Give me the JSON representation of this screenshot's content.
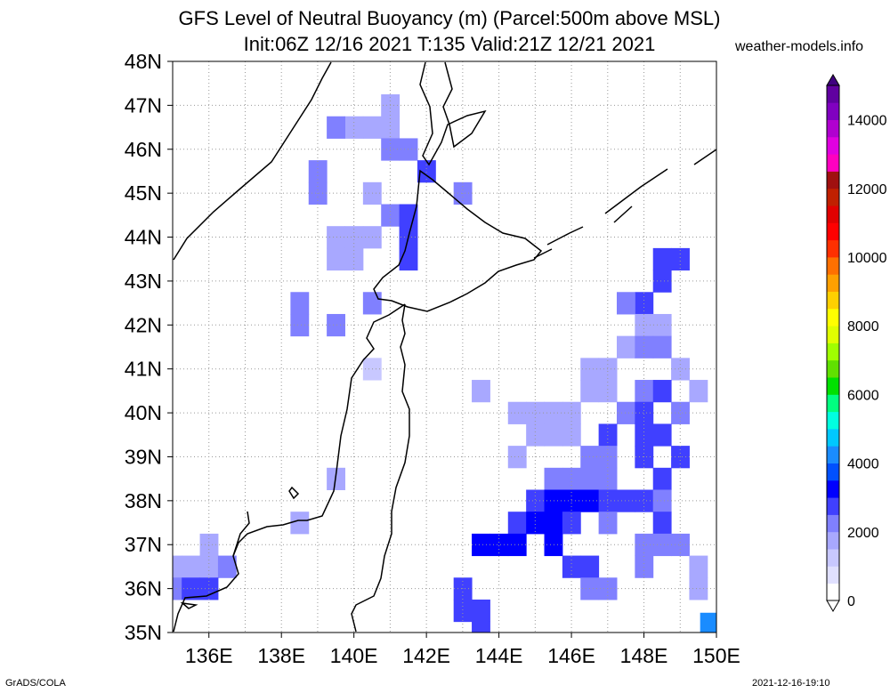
{
  "title_line1": "GFS Level of Neutral Buoyancy (m) (Parcel:500m above MSL)",
  "title_line2": "Init:06Z 12/16 2021 T:135 Valid:21Z 12/21 2021",
  "site": "weather-models.info",
  "footer_left": "GrADS/COLA",
  "footer_right": "2021-12-16-19:10",
  "lat_labels": [
    "48N",
    "47N",
    "46N",
    "45N",
    "44N",
    "43N",
    "42N",
    "41N",
    "40N",
    "39N",
    "38N",
    "37N",
    "36N",
    "35N"
  ],
  "lon_labels": [
    "136E",
    "138E",
    "140E",
    "142E",
    "144E",
    "146E",
    "148E",
    "150E"
  ],
  "colorbar": {
    "labels": [
      "0",
      "2000",
      "4000",
      "6000",
      "8000",
      "10000",
      "12000",
      "14000"
    ],
    "colors": [
      "#ffffff",
      "#e0e0ff",
      "#c8c8ff",
      "#a8a8ff",
      "#8080ff",
      "#4040ff",
      "#0000ff",
      "#0050ff",
      "#1a8cff",
      "#00c8ff",
      "#00ffe0",
      "#00ff80",
      "#00e000",
      "#60e000",
      "#a0ff00",
      "#e0ff00",
      "#ffff00",
      "#ffd000",
      "#ffa000",
      "#ff7000",
      "#ff3000",
      "#ff0000",
      "#e00000",
      "#c02000",
      "#a01010",
      "#ff00c0",
      "#e000e0",
      "#b000d0",
      "#8000c0",
      "#6000a0"
    ]
  },
  "chart_data": {
    "type": "heatmap",
    "variable": "Level of Neutral Buoyancy (m)",
    "lon_range": [
      135,
      150
    ],
    "lat_range": [
      35,
      48
    ],
    "grid_step_deg": 0.5,
    "value_range": [
      0,
      15000
    ],
    "cells": [
      [
        141,
        47,
        1700
      ],
      [
        140.5,
        46.5,
        1800
      ],
      [
        141,
        46.5,
        1900
      ],
      [
        140,
        46.5,
        1900
      ],
      [
        139.5,
        46.5,
        2100
      ],
      [
        141,
        46,
        2200
      ],
      [
        141.5,
        46,
        2000
      ],
      [
        142,
        45.5,
        2500
      ],
      [
        139,
        45.5,
        2300
      ],
      [
        139,
        45,
        2400
      ],
      [
        140.5,
        45,
        1900
      ],
      [
        143,
        45,
        2000
      ],
      [
        141,
        44.5,
        2400
      ],
      [
        141.5,
        44.5,
        2800
      ],
      [
        141.5,
        44,
        2600
      ],
      [
        140.5,
        44,
        1800
      ],
      [
        140,
        44,
        1800
      ],
      [
        139.5,
        44,
        1800
      ],
      [
        140,
        43.5,
        1800
      ],
      [
        139.5,
        43.5,
        1800
      ],
      [
        141.5,
        43.5,
        2500
      ],
      [
        138.5,
        42.5,
        2000
      ],
      [
        138.5,
        42,
        2100
      ],
      [
        140.5,
        42.5,
        2400
      ],
      [
        139.5,
        42,
        2300
      ],
      [
        148.5,
        43.5,
        2800
      ],
      [
        149,
        43.5,
        2900
      ],
      [
        148.5,
        43,
        2700
      ],
      [
        148,
        42.5,
        2500
      ],
      [
        147.5,
        42.5,
        2000
      ],
      [
        148,
        42,
        1800
      ],
      [
        148.5,
        42,
        1900
      ],
      [
        147.5,
        41.5,
        1700
      ],
      [
        148,
        41.5,
        2000
      ],
      [
        148.5,
        41.5,
        2200
      ],
      [
        147,
        41,
        1700
      ],
      [
        146.5,
        41,
        1600
      ],
      [
        149,
        41,
        1700
      ],
      [
        149.5,
        40.5,
        1800
      ],
      [
        146.5,
        40.5,
        1600
      ],
      [
        147,
        40.5,
        1700
      ],
      [
        148,
        40.5,
        2300
      ],
      [
        148.5,
        40.5,
        2600
      ],
      [
        147.5,
        40,
        2100
      ],
      [
        148,
        40,
        2500
      ],
      [
        149,
        40,
        2400
      ],
      [
        146,
        40,
        1600
      ],
      [
        144.5,
        40,
        1600
      ],
      [
        145,
        40,
        1600
      ],
      [
        145.5,
        40,
        1700
      ],
      [
        145,
        39.5,
        1600
      ],
      [
        145.5,
        39.5,
        1700
      ],
      [
        146,
        39.5,
        1700
      ],
      [
        147,
        39.5,
        2600
      ],
      [
        148,
        39.5,
        2900
      ],
      [
        148.5,
        39.5,
        2800
      ],
      [
        144.5,
        39,
        1700
      ],
      [
        146.5,
        39,
        2000
      ],
      [
        147,
        39,
        2200
      ],
      [
        148,
        39,
        2600
      ],
      [
        149,
        39,
        2500
      ],
      [
        145.5,
        38.5,
        2100
      ],
      [
        146,
        38.5,
        2400
      ],
      [
        146.5,
        38.5,
        2300
      ],
      [
        147,
        38.5,
        2100
      ],
      [
        148.5,
        38.5,
        2600
      ],
      [
        145,
        38,
        2600
      ],
      [
        145.5,
        38,
        3100
      ],
      [
        146,
        38,
        3300
      ],
      [
        146.5,
        38,
        3100
      ],
      [
        147,
        38,
        2700
      ],
      [
        147.5,
        38,
        2500
      ],
      [
        148,
        38,
        2500
      ],
      [
        148.5,
        38,
        2300
      ],
      [
        144.5,
        37.5,
        2900
      ],
      [
        145,
        37.5,
        3300
      ],
      [
        145.5,
        37.5,
        3200
      ],
      [
        146,
        37.5,
        2900
      ],
      [
        147,
        37.5,
        2400
      ],
      [
        148.5,
        37.5,
        2500
      ],
      [
        144,
        37,
        3100
      ],
      [
        144.5,
        37,
        3200
      ],
      [
        143.5,
        37,
        3200
      ],
      [
        145.5,
        37,
        3100
      ],
      [
        148,
        37,
        2000
      ],
      [
        148.5,
        37,
        2200
      ],
      [
        149,
        37,
        2400
      ],
      [
        146,
        36.5,
        2900
      ],
      [
        146.5,
        36.5,
        2600
      ],
      [
        148,
        36.5,
        2200
      ],
      [
        149.5,
        36.5,
        1800
      ],
      [
        146.5,
        36,
        2300
      ],
      [
        147,
        36,
        2200
      ],
      [
        149.5,
        36,
        1500
      ],
      [
        143,
        36,
        2600
      ],
      [
        143,
        35.5,
        2500
      ],
      [
        143.5,
        35.5,
        2600
      ],
      [
        143.5,
        35,
        2700
      ],
      [
        149.8,
        35.2,
        4200
      ],
      [
        140.5,
        41,
        1300
      ],
      [
        143.5,
        40.5,
        1900
      ],
      [
        139.5,
        38.5,
        1700
      ],
      [
        138.5,
        37.5,
        1600
      ],
      [
        135,
        36.5,
        1800
      ],
      [
        135.5,
        36.5,
        1800
      ],
      [
        136,
        36.5,
        1900
      ],
      [
        136,
        37,
        1900
      ],
      [
        136.5,
        36.5,
        2100
      ],
      [
        135,
        36,
        2000
      ],
      [
        135.5,
        36,
        2600
      ],
      [
        136,
        36,
        2600
      ]
    ]
  }
}
